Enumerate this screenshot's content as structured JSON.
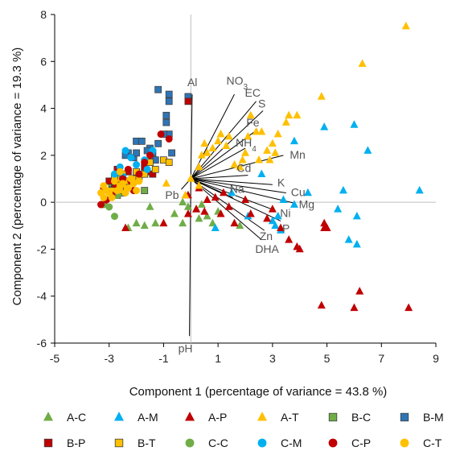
{
  "chart_data": {
    "type": "scatter",
    "xlabel": "Component 1 (percentage of variance = 43.8 %)",
    "ylabel": "Component 2 (percentage of variance = 19.3 %)",
    "xlim": [
      -5,
      9
    ],
    "ylim": [
      -6,
      8
    ],
    "xticks": [
      -5,
      -3,
      -1,
      1,
      3,
      5,
      7,
      9
    ],
    "yticks": [
      -6,
      -4,
      -2,
      0,
      2,
      4,
      6,
      8
    ],
    "grid": false,
    "legend_position": "bottom",
    "loadings": [
      {
        "label": "Al",
        "x": 0.05,
        "y": 4.6
      },
      {
        "label": "NO3",
        "x": 1.6,
        "y": 4.6
      },
      {
        "label": "EC",
        "x": 2.4,
        "y": 4.3
      },
      {
        "label": "S",
        "x": 2.65,
        "y": 3.9
      },
      {
        "label": "Fe",
        "x": 2.45,
        "y": 3.1
      },
      {
        "label": "NH4",
        "x": 2.0,
        "y": 2.3
      },
      {
        "label": "Mn",
        "x": 3.4,
        "y": 2.0
      },
      {
        "label": "Cd",
        "x": 2.1,
        "y": 1.15
      },
      {
        "label": "K",
        "x": 3.0,
        "y": 0.75
      },
      {
        "label": "Cu",
        "x": 3.5,
        "y": 0.4
      },
      {
        "label": "Na",
        "x": 1.55,
        "y": 0.2
      },
      {
        "label": "Mg",
        "x": 3.85,
        "y": -0.05
      },
      {
        "label": "Ni",
        "x": 3.1,
        "y": -0.35
      },
      {
        "label": "P",
        "x": 3.3,
        "y": -0.8
      },
      {
        "label": "Zn",
        "x": 2.7,
        "y": -1.2
      },
      {
        "label": "DHA",
        "x": 2.6,
        "y": -1.6
      },
      {
        "label": "Pb",
        "x": -0.35,
        "y": 0.55
      },
      {
        "label": "pH",
        "x": -0.05,
        "y": -5.7
      }
    ],
    "origin": [
      0,
      1
    ],
    "series": [
      {
        "name": "A-C",
        "color": "#70ad47",
        "marker": "triangle",
        "points": [
          [
            -2.3,
            -1.1
          ],
          [
            -2.0,
            -0.9
          ],
          [
            -1.7,
            -1.0
          ],
          [
            -1.5,
            -0.2
          ],
          [
            -1.3,
            -0.9
          ],
          [
            -0.6,
            -0.5
          ],
          [
            -0.3,
            -0.9
          ],
          [
            -0.1,
            -0.2
          ],
          [
            0.2,
            -0.3
          ],
          [
            0.6,
            -0.6
          ],
          [
            0.8,
            -0.9
          ],
          [
            1.0,
            -0.4
          ],
          [
            0.4,
            -0.1
          ],
          [
            1.8,
            -1.0
          ],
          [
            -0.3,
            0.0
          ],
          [
            0.3,
            -0.7
          ]
        ]
      },
      {
        "name": "A-M",
        "color": "#00b0f0",
        "marker": "triangle",
        "points": [
          [
            0.9,
            -1.1
          ],
          [
            1.5,
            0.4
          ],
          [
            2.1,
            -0.6
          ],
          [
            2.6,
            1.2
          ],
          [
            3.1,
            -1.0
          ],
          [
            3.2,
            -0.6
          ],
          [
            3.4,
            0.1
          ],
          [
            3.8,
            -0.1
          ],
          [
            3.8,
            2.6
          ],
          [
            4.9,
            3.2
          ],
          [
            5.4,
            -0.3
          ],
          [
            5.6,
            0.5
          ],
          [
            5.8,
            -1.6
          ],
          [
            6.1,
            -0.6
          ],
          [
            6.1,
            -1.8
          ],
          [
            6.5,
            2.2
          ],
          [
            6.0,
            3.3
          ],
          [
            8.4,
            0.5
          ],
          [
            4.3,
            0.4
          ],
          [
            3.3,
            -1.2
          ],
          [
            3.0,
            -0.8
          ]
        ]
      },
      {
        "name": "A-P",
        "color": "#c00000",
        "marker": "triangle",
        "points": [
          [
            -2.4,
            -1.1
          ],
          [
            -1.0,
            -0.9
          ],
          [
            -0.1,
            0.3
          ],
          [
            -0.1,
            -0.5
          ],
          [
            0.2,
            -0.3
          ],
          [
            0.3,
            0.6
          ],
          [
            0.5,
            -0.4
          ],
          [
            0.6,
            0.1
          ],
          [
            0.9,
            0.2
          ],
          [
            1.1,
            -0.5
          ],
          [
            1.2,
            0.4
          ],
          [
            1.4,
            -0.2
          ],
          [
            1.6,
            -0.9
          ],
          [
            2.0,
            0.1
          ],
          [
            2.2,
            -0.5
          ],
          [
            2.8,
            -0.7
          ],
          [
            3.0,
            -0.3
          ],
          [
            3.3,
            -1.1
          ],
          [
            3.6,
            -1.6
          ],
          [
            3.9,
            -1.9
          ],
          [
            4.0,
            -2.0
          ],
          [
            4.8,
            -4.4
          ],
          [
            4.9,
            -1.1
          ],
          [
            4.9,
            -0.9
          ],
          [
            5.0,
            -1.1
          ],
          [
            6.0,
            -4.5
          ],
          [
            6.2,
            -3.8
          ],
          [
            8.0,
            -4.5
          ]
        ]
      },
      {
        "name": "A-T",
        "color": "#ffc000",
        "marker": "triangle",
        "points": [
          [
            -0.9,
            0.8
          ],
          [
            -0.2,
            0.3
          ],
          [
            0.0,
            1.0
          ],
          [
            0.3,
            0.7
          ],
          [
            0.5,
            2.5
          ],
          [
            0.6,
            2.1
          ],
          [
            0.8,
            2.3
          ],
          [
            1.1,
            2.9
          ],
          [
            1.3,
            2.4
          ],
          [
            1.4,
            2.8
          ],
          [
            1.6,
            1.6
          ],
          [
            1.8,
            1.5
          ],
          [
            1.9,
            1.8
          ],
          [
            2.0,
            2.1
          ],
          [
            2.1,
            2.8
          ],
          [
            2.2,
            3.7
          ],
          [
            2.4,
            3.0
          ],
          [
            2.5,
            1.8
          ],
          [
            2.6,
            3.0
          ],
          [
            2.8,
            2.2
          ],
          [
            2.9,
            1.8
          ],
          [
            3.0,
            2.5
          ],
          [
            3.1,
            2.1
          ],
          [
            3.2,
            2.9
          ],
          [
            3.5,
            3.4
          ],
          [
            3.6,
            3.7
          ],
          [
            3.9,
            3.7
          ],
          [
            4.8,
            4.5
          ],
          [
            6.3,
            5.9
          ],
          [
            7.9,
            7.5
          ],
          [
            0.4,
            2.0
          ],
          [
            1.0,
            2.6
          ],
          [
            0.3,
            1.5
          ]
        ]
      },
      {
        "name": "B-C",
        "color": "#70ad47",
        "marker": "square",
        "points": [
          [
            -2.7,
            0.3
          ],
          [
            -2.5,
            0.4
          ],
          [
            -1.7,
            0.5
          ],
          [
            -2.9,
            0.8
          ]
        ]
      },
      {
        "name": "B-M",
        "color": "#2e75b6",
        "marker": "square",
        "points": [
          [
            -1.2,
            4.8
          ],
          [
            -0.8,
            4.6
          ],
          [
            -0.1,
            4.5
          ],
          [
            -0.8,
            4.3
          ],
          [
            -0.9,
            3.7
          ],
          [
            -0.9,
            3.4
          ],
          [
            -0.8,
            2.9
          ],
          [
            -1.0,
            2.9
          ],
          [
            -1.2,
            2.5
          ],
          [
            -1.5,
            2.3
          ],
          [
            -2.3,
            2.1
          ],
          [
            -2.0,
            2.6
          ],
          [
            -1.8,
            2.6
          ],
          [
            -1.6,
            2.2
          ],
          [
            -1.4,
            2.1
          ],
          [
            -0.7,
            2.1
          ],
          [
            -2.4,
            2.0
          ],
          [
            -2.1,
            1.9
          ],
          [
            -2.0,
            2.1
          ],
          [
            -1.3,
            1.8
          ]
        ]
      },
      {
        "name": "B-P",
        "color": "#c00000",
        "marker": "square",
        "points": [
          [
            -0.1,
            4.3
          ],
          [
            -2.7,
            1.4
          ],
          [
            -2.3,
            1.3
          ],
          [
            -2.0,
            1.2
          ],
          [
            -1.7,
            1.5
          ],
          [
            -1.6,
            1.3
          ],
          [
            -1.4,
            1.2
          ],
          [
            -2.8,
            0.6
          ],
          [
            -3.0,
            0.9
          ]
        ]
      },
      {
        "name": "B-T",
        "color": "#ffc000",
        "marker": "square",
        "points": [
          [
            -2.9,
            0.5
          ],
          [
            -2.7,
            0.8
          ],
          [
            -2.6,
            1.0
          ],
          [
            -2.5,
            1.2
          ],
          [
            -2.4,
            0.6
          ],
          [
            -2.3,
            0.9
          ],
          [
            -2.1,
            1.0
          ],
          [
            -2.0,
            1.3
          ],
          [
            -1.9,
            1.1
          ],
          [
            -1.7,
            1.2
          ],
          [
            -1.5,
            1.7
          ],
          [
            -1.3,
            1.4
          ],
          [
            -1.0,
            1.8
          ],
          [
            -0.8,
            1.7
          ],
          [
            -2.8,
            1.1
          ],
          [
            -2.6,
            0.5
          ]
        ]
      },
      {
        "name": "C-C",
        "color": "#70ad47",
        "marker": "circle",
        "points": [
          [
            -3.2,
            -0.1
          ],
          [
            -3.0,
            -0.2
          ],
          [
            -2.8,
            -0.6
          ],
          [
            -2.7,
            0.3
          ]
        ]
      },
      {
        "name": "C-M",
        "color": "#00b0f0",
        "marker": "circle",
        "points": [
          [
            -2.6,
            1.5
          ],
          [
            -2.4,
            2.2
          ],
          [
            -2.2,
            1.9
          ],
          [
            -2.0,
            1.6
          ],
          [
            -1.7,
            1.8
          ],
          [
            -1.6,
            1.4
          ],
          [
            -1.4,
            2.2
          ],
          [
            -2.8,
            1.2
          ],
          [
            -2.5,
            1.1
          ]
        ]
      },
      {
        "name": "C-P",
        "color": "#c00000",
        "marker": "circle",
        "points": [
          [
            -3.3,
            -0.1
          ],
          [
            -3.1,
            0.1
          ],
          [
            -2.9,
            0.3
          ],
          [
            -2.7,
            0.7
          ],
          [
            -2.5,
            1.0
          ],
          [
            -2.3,
            1.4
          ],
          [
            -2.2,
            0.9
          ],
          [
            -2.1,
            0.5
          ],
          [
            -1.9,
            1.2
          ],
          [
            -1.7,
            1.7
          ],
          [
            -1.5,
            2.0
          ],
          [
            -1.1,
            2.9
          ],
          [
            -0.8,
            2.7
          ],
          [
            -3.2,
            0.6
          ]
        ]
      },
      {
        "name": "C-T",
        "color": "#ffc000",
        "marker": "circle",
        "points": [
          [
            -3.3,
            0.4
          ],
          [
            -3.2,
            0.7
          ],
          [
            -3.1,
            0.5
          ],
          [
            -3.0,
            0.4
          ],
          [
            -2.9,
            0.2
          ],
          [
            -2.8,
            0.9
          ],
          [
            -2.7,
            0.5
          ],
          [
            -2.6,
            0.7
          ],
          [
            -2.5,
            0.8
          ],
          [
            -2.4,
            0.4
          ],
          [
            -2.3,
            0.6
          ],
          [
            -2.2,
            1.0
          ],
          [
            -2.1,
            0.8
          ],
          [
            -2.0,
            0.5
          ],
          [
            -1.9,
            0.9
          ],
          [
            -3.2,
            0.2
          ],
          [
            -2.6,
            1.3
          ]
        ]
      }
    ]
  }
}
